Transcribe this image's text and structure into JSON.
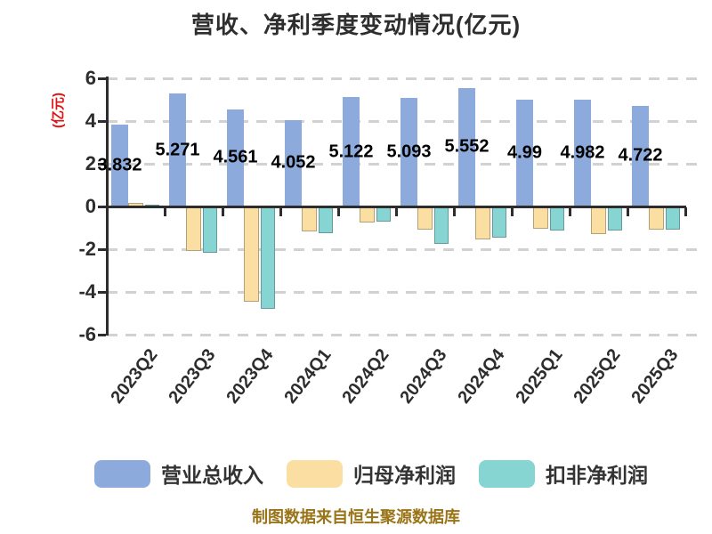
{
  "chart_data": {
    "type": "bar",
    "title": "营收、净利季度变动情况(亿元)",
    "ylabel": "(亿元)",
    "footer": "制图数据来自恒生聚源数据库",
    "categories": [
      "2023Q2",
      "2023Q3",
      "2023Q4",
      "2024Q1",
      "2024Q2",
      "2024Q3",
      "2024Q4",
      "2025Q1",
      "2025Q2",
      "2025Q3"
    ],
    "series": [
      {
        "name": "营业总收入",
        "color": "#8caadb",
        "values": [
          3.832,
          5.271,
          4.561,
          4.052,
          5.122,
          5.093,
          5.552,
          4.99,
          4.982,
          4.722
        ],
        "data_labels": true
      },
      {
        "name": "归母净利润",
        "color": "#fbdfa2",
        "values": [
          0.18,
          -2.08,
          -4.45,
          -1.17,
          -0.75,
          -1.1,
          -1.54,
          -1.05,
          -1.3,
          -1.08
        ],
        "data_labels": false
      },
      {
        "name": "扣非净利润",
        "color": "#87d5d3",
        "values": [
          0.05,
          -2.15,
          -4.79,
          -1.25,
          -0.7,
          -1.75,
          -1.46,
          -1.14,
          -1.14,
          -1.08
        ],
        "data_labels": false
      }
    ],
    "ylim": [
      -6,
      6
    ],
    "yticks": [
      6,
      4,
      2,
      0,
      -2,
      -4,
      -6
    ],
    "grid": "horizontal-dashed",
    "legend_position": "bottom",
    "colors": {
      "axis": "#2d2d2d",
      "gridline": "#d2d2d2",
      "title_text": "#2e2e2e",
      "ylabel_text": "#e31212",
      "value_label_text": "#000000",
      "legend_text": "#333333",
      "footer_text": "#9a7418",
      "background": "#ffffff"
    }
  }
}
